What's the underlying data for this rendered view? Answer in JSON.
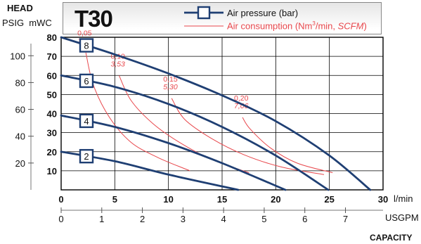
{
  "header": {
    "model": "T30",
    "head_label": "HEAD",
    "left_units": "PSIG  mWC",
    "legend_pressure": "Air pressure (bar)",
    "legend_consumption_prefix": "Air consumption (Nm",
    "legend_consumption_sup": "3",
    "legend_consumption_mid": "/min, ",
    "legend_consumption_italic": "SCFM",
    "legend_consumption_suffix": ")"
  },
  "axes": {
    "x_unit": "l/min",
    "x2_unit": "USGPM",
    "capacity_label": "CAPACITY",
    "x_ticks": [
      "0",
      "5",
      "10",
      "15",
      "20",
      "25",
      "30"
    ],
    "x2_ticks": [
      "0",
      "1",
      "2",
      "3",
      "4",
      "5",
      "6",
      "7"
    ],
    "mwc_ticks": [
      "10",
      "20",
      "30",
      "40",
      "50",
      "60",
      "70",
      "80"
    ],
    "psig_ticks": [
      "20",
      "40",
      "60",
      "80",
      "100"
    ]
  },
  "colors": {
    "curve": "#1f3f73",
    "consumption": "#e8474c",
    "grid": "#000000"
  },
  "chart_data": {
    "type": "line",
    "title": "T30",
    "xlabel": "l/min",
    "x2label": "USGPM",
    "ylabel": "mWC",
    "y2label": "PSIG",
    "xlim": [
      0,
      30
    ],
    "ylim": [
      0,
      80
    ],
    "series": [
      {
        "name": "8",
        "x": [
          0,
          5,
          10,
          15,
          20,
          25,
          28.8
        ],
        "y": [
          80,
          71,
          61,
          49.5,
          36,
          18,
          0
        ]
      },
      {
        "name": "6",
        "x": [
          0,
          5,
          10,
          15,
          20,
          24.9
        ],
        "y": [
          60,
          54,
          45,
          33,
          18,
          0
        ]
      },
      {
        "name": "4",
        "x": [
          0,
          5,
          10,
          15,
          20.9
        ],
        "y": [
          39,
          33,
          24.5,
          14,
          0
        ]
      },
      {
        "name": "2",
        "x": [
          0,
          5,
          10,
          16.5
        ],
        "y": [
          20,
          15,
          8,
          0
        ]
      }
    ],
    "consumption_curves": [
      {
        "nm3": "0,05",
        "scfm": "1,77",
        "x": [
          2.3,
          3,
          4.5,
          6.5,
          9,
          12
        ],
        "y": [
          72,
          55,
          38,
          25,
          17,
          10
        ]
      },
      {
        "nm3": "0,10",
        "scfm": "3,53",
        "x": [
          5.4,
          6.5,
          8.5,
          11,
          14,
          17.5
        ],
        "y": [
          60,
          47,
          35,
          25,
          16,
          9
        ]
      },
      {
        "nm3": "0,15",
        "scfm": "5,30",
        "x": [
          10.3,
          11.5,
          14,
          17,
          20.5,
          24.5
        ],
        "y": [
          48,
          37,
          27,
          18.5,
          12,
          8
        ]
      },
      {
        "nm3": "0,20",
        "scfm": "7,06",
        "x": [
          16.9,
          17.6,
          19.5,
          22,
          25.3
        ],
        "y": [
          38,
          32,
          22,
          14,
          9
        ]
      }
    ],
    "mwc_per_psig": 0.7032
  }
}
